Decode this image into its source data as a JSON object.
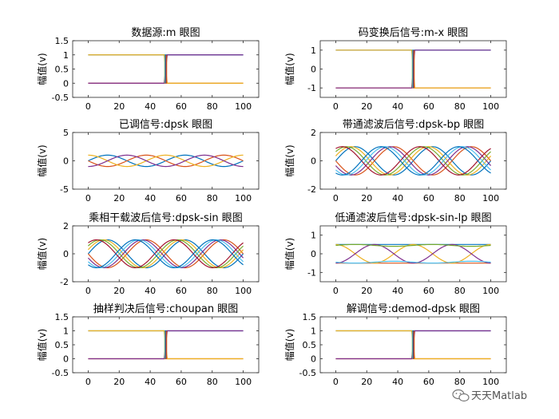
{
  "figure": {
    "background": "#ffffff",
    "watermark": {
      "text": "天天Matlab",
      "icon": "wechat-icon"
    }
  },
  "colors": [
    "#0072BD",
    "#D95319",
    "#EDB120",
    "#7E2F8E",
    "#77AC30",
    "#4DBEEE",
    "#A2142F"
  ],
  "chart_data": [
    {
      "type": "line",
      "title": "数据源:m 眼图",
      "ylabel": "幅值(v)",
      "xlim": [
        -10,
        110
      ],
      "ylim": [
        -0.5,
        1.5
      ],
      "xticks": [
        0,
        20,
        40,
        60,
        80,
        100
      ],
      "yticks": [
        -0.5,
        0,
        0.5,
        1,
        1.5
      ],
      "xticklabels": [
        "0",
        "20",
        "40",
        "60",
        "80",
        "100"
      ],
      "yticklabels": [
        "-0.5",
        "0",
        "0.5",
        "1",
        "1.5"
      ],
      "trace_kind": "nrz",
      "levels": [
        0,
        1
      ],
      "transition_x": 50
    },
    {
      "type": "line",
      "title": "码变换后信号:m-x 眼图",
      "ylabel": "幅值(v)",
      "xlim": [
        -10,
        110
      ],
      "ylim": [
        -1.5,
        1.5
      ],
      "xticks": [
        0,
        20,
        40,
        60,
        80,
        100
      ],
      "yticks": [
        -1,
        0,
        1
      ],
      "xticklabels": [
        "0",
        "20",
        "40",
        "60",
        "80",
        "100"
      ],
      "yticklabels": [
        "-1",
        "0",
        "1"
      ],
      "trace_kind": "nrz",
      "levels": [
        -1,
        1
      ],
      "transition_x": 50
    },
    {
      "type": "line",
      "title": "已调信号:dpsk 眼图",
      "ylabel": "幅值(v)",
      "xlim": [
        -10,
        110
      ],
      "ylim": [
        -5,
        5
      ],
      "xticks": [
        0,
        20,
        40,
        60,
        80,
        100
      ],
      "yticks": [
        -5,
        0,
        5
      ],
      "xticklabels": [
        "0",
        "20",
        "40",
        "60",
        "80",
        "100"
      ],
      "yticklabels": [
        "-5",
        "0",
        "5"
      ],
      "trace_kind": "sine",
      "amplitude": 1,
      "period": 50
    },
    {
      "type": "line",
      "title": "带通滤波后信号:dpsk-bp 眼图",
      "ylabel": "幅值(v)",
      "xlim": [
        -10,
        110
      ],
      "ylim": [
        -2,
        2
      ],
      "xticks": [
        0,
        20,
        40,
        60,
        80,
        100
      ],
      "yticks": [
        -2,
        0,
        2
      ],
      "xticklabels": [
        "0",
        "20",
        "40",
        "60",
        "80",
        "100"
      ],
      "yticklabels": [
        "-2",
        "0",
        "2"
      ],
      "trace_kind": "sine_family",
      "amplitude": 1,
      "period": 50,
      "phases": [
        0,
        0.35,
        0.7,
        1.05
      ]
    },
    {
      "type": "line",
      "title": "乘相干载波后信号:dpsk-sin 眼图",
      "ylabel": "幅值(v)",
      "xlim": [
        -10,
        110
      ],
      "ylim": [
        -2,
        2
      ],
      "xticks": [
        0,
        20,
        40,
        60,
        80,
        100
      ],
      "yticks": [
        -2,
        0,
        2
      ],
      "xticklabels": [
        "0",
        "20",
        "40",
        "60",
        "80",
        "100"
      ],
      "yticklabels": [
        "-2",
        "0",
        "2"
      ],
      "trace_kind": "sine_family",
      "amplitude": 1,
      "period": 50,
      "phases": [
        0,
        0.3,
        0.6,
        0.9
      ]
    },
    {
      "type": "line",
      "title": "低通滤波后信号:dpsk-sin-lp 眼图",
      "ylabel": "幅值(v)",
      "xlim": [
        -10,
        110
      ],
      "ylim": [
        -1.5,
        1.5
      ],
      "xticks": [
        0,
        20,
        40,
        60,
        80,
        100
      ],
      "yticks": [
        -1,
        0,
        1
      ],
      "xticklabels": [
        "0",
        "20",
        "40",
        "60",
        "80",
        "100"
      ],
      "yticklabels": [
        "-1",
        "0",
        "1"
      ],
      "trace_kind": "lp_family"
    },
    {
      "type": "line",
      "title": "抽样判决后信号:choupan 眼图",
      "ylabel": "幅值(v)",
      "xlim": [
        -10,
        110
      ],
      "ylim": [
        -0.5,
        1.5
      ],
      "xticks": [
        0,
        20,
        40,
        60,
        80,
        100
      ],
      "yticks": [
        -0.5,
        0,
        0.5,
        1,
        1.5
      ],
      "xticklabels": [
        "0",
        "20",
        "40",
        "60",
        "80",
        "100"
      ],
      "yticklabels": [
        "-0.5",
        "0",
        "0.5",
        "1",
        "1.5"
      ],
      "trace_kind": "nrz",
      "levels": [
        0,
        1
      ],
      "transition_x": 50
    },
    {
      "type": "line",
      "title": "解调信号:demod-dpsk 眼图",
      "ylabel": "幅值(v)",
      "xlim": [
        -10,
        110
      ],
      "ylim": [
        -0.5,
        1.5
      ],
      "xticks": [
        0,
        20,
        40,
        60,
        80,
        100
      ],
      "yticks": [
        -0.5,
        0,
        0.5,
        1,
        1.5
      ],
      "xticklabels": [
        "0",
        "20",
        "40",
        "60",
        "80",
        "100"
      ],
      "yticklabels": [
        "-0.5",
        "0",
        "0.5",
        "1",
        "1.5"
      ],
      "trace_kind": "nrz",
      "levels": [
        0,
        1
      ],
      "transition_x": 50
    }
  ]
}
